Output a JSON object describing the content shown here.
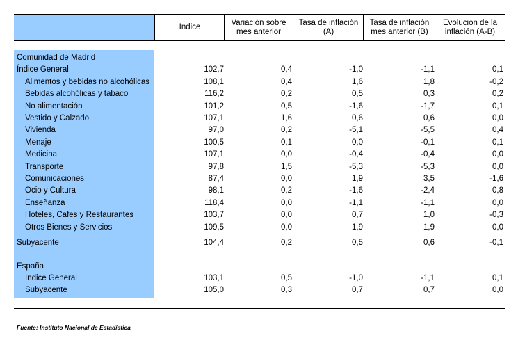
{
  "header": {
    "columns": [
      "Indice",
      "Variación sobre\nmes anterior",
      "Tasa de inflación\n(A)",
      "Tasa de inflación\nmes anterior (B)",
      "Evolucion de la\ninflación (A-B)"
    ]
  },
  "sections": [
    {
      "title": "Comunidad de Madrid",
      "rows": [
        {
          "label": "Índice General",
          "sub": false,
          "values": [
            "102,7",
            "0,4",
            "-1,0",
            "-1,1",
            "0,1"
          ]
        },
        {
          "label": "Alimentos y bebidas no alcohólicas",
          "sub": true,
          "values": [
            "108,1",
            "0,4",
            "1,6",
            "1,8",
            "-0,2"
          ]
        },
        {
          "label": "Bebidas alcohólicas y tabaco",
          "sub": true,
          "values": [
            "116,2",
            "0,2",
            "0,5",
            "0,3",
            "0,2"
          ]
        },
        {
          "label": "No alimentación",
          "sub": true,
          "values": [
            "101,2",
            "0,5",
            "-1,6",
            "-1,7",
            "0,1"
          ]
        },
        {
          "label": "Vestido y Calzado",
          "sub": true,
          "values": [
            "107,1",
            "1,6",
            "0,6",
            "0,6",
            "0,0"
          ]
        },
        {
          "label": "Vivienda",
          "sub": true,
          "values": [
            "97,0",
            "0,2",
            "-5,1",
            "-5,5",
            "0,4"
          ]
        },
        {
          "label": "Menaje",
          "sub": true,
          "values": [
            "100,5",
            "0,1",
            "0,0",
            "-0,1",
            "0,1"
          ]
        },
        {
          "label": "Medicina",
          "sub": true,
          "values": [
            "107,1",
            "0,0",
            "-0,4",
            "-0,4",
            "0,0"
          ]
        },
        {
          "label": "Transporte",
          "sub": true,
          "values": [
            "97,8",
            "1,5",
            "-5,3",
            "-5,3",
            "0,0"
          ]
        },
        {
          "label": "Comunicaciones",
          "sub": true,
          "values": [
            "87,4",
            "0,0",
            "1,9",
            "3,5",
            "-1,6"
          ]
        },
        {
          "label": "Ocio y Cultura",
          "sub": true,
          "values": [
            "98,1",
            "0,2",
            "-1,6",
            "-2,4",
            "0,8"
          ]
        },
        {
          "label": "Enseñanza",
          "sub": true,
          "values": [
            "118,4",
            "0,0",
            "-1,1",
            "-1,1",
            "0,0"
          ]
        },
        {
          "label": "Hoteles, Cafes y Restaurantes",
          "sub": true,
          "values": [
            "103,7",
            "0,0",
            "0,7",
            "1,0",
            "-0,3"
          ]
        },
        {
          "label": "Otros Bienes y Servicios",
          "sub": true,
          "values": [
            "109,5",
            "0,0",
            "1,9",
            "1,9",
            "0,0"
          ]
        },
        {
          "label": "Subyacente",
          "sub": false,
          "values": [
            "104,4",
            "0,2",
            "0,5",
            "0,6",
            "-0,1"
          ]
        }
      ]
    },
    {
      "title": "España",
      "rows": [
        {
          "label": "Indice General",
          "sub": true,
          "values": [
            "103,1",
            "0,5",
            "-1,0",
            "-1,1",
            "0,1"
          ]
        },
        {
          "label": "Subyacente",
          "sub": true,
          "values": [
            "105,0",
            "0,3",
            "0,7",
            "0,7",
            "0,0"
          ]
        }
      ]
    }
  ],
  "source": "Fuente: Instituto Nacional de Estadística",
  "colors": {
    "label_fill": "#99ccff",
    "rule": "#000000"
  }
}
